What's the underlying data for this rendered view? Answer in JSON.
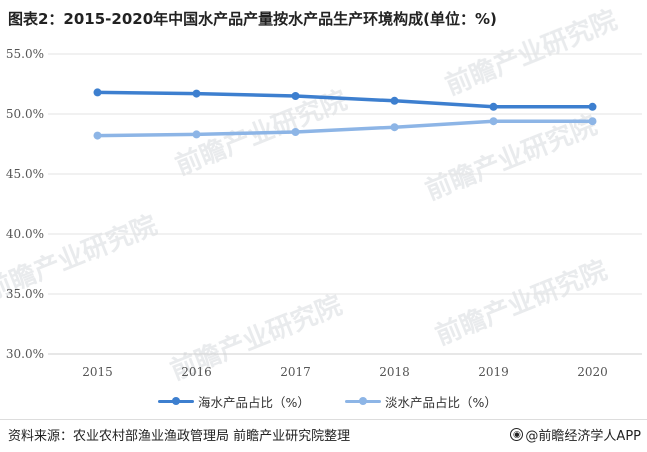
{
  "header": {
    "title": "图表2：2015-2020年中国水产品产量按水产品生产环境构成(单位：%)"
  },
  "chart_data": {
    "type": "line",
    "categories": [
      "2015",
      "2016",
      "2017",
      "2018",
      "2019",
      "2020"
    ],
    "series": [
      {
        "name": "海水产品占比（%）",
        "color": "#3d7fcf",
        "values": [
          51.8,
          51.7,
          51.5,
          51.1,
          50.6,
          50.6
        ]
      },
      {
        "name": "淡水产品占比（%）",
        "color": "#8db5e6",
        "values": [
          48.2,
          48.3,
          48.5,
          48.9,
          49.4,
          49.4
        ]
      }
    ],
    "ylim": [
      30.0,
      55.0
    ],
    "y_ticks": [
      "30.0%",
      "35.0%",
      "40.0%",
      "45.0%",
      "50.0%",
      "55.0%"
    ],
    "grid": true,
    "legend": "bottom-center"
  },
  "watermark": {
    "text": "前瞻产业研究院"
  },
  "footer": {
    "source": "资料来源：农业农村部渔业渔政管理局 前瞻产业研究院整理",
    "brand": "@前瞻经济学人APP",
    "brand_icon": "compass-icon"
  }
}
